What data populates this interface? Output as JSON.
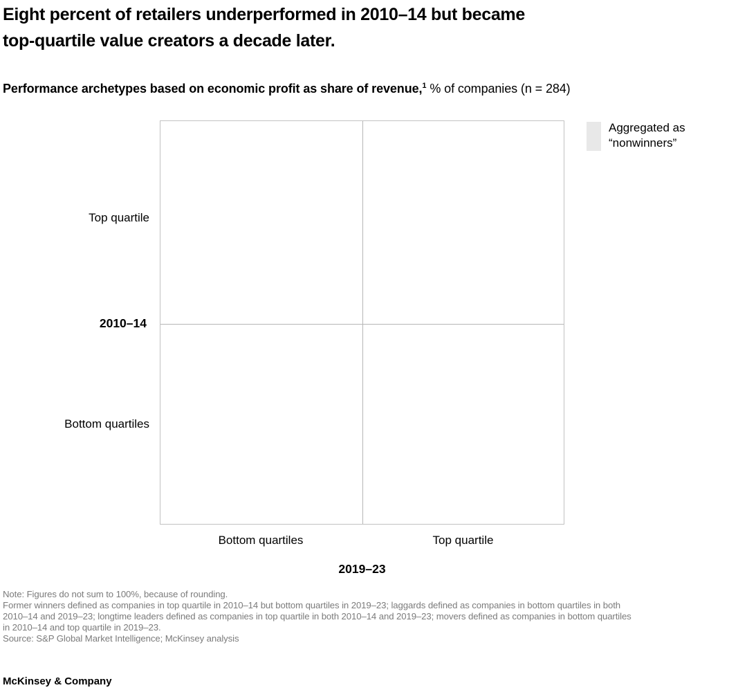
{
  "header": {
    "title_line1": "Eight percent of retailers underperformed in 2010–14 but became",
    "title_line2": "top-quartile value creators a decade later.",
    "subtitle_bold": "Performance archetypes based on economic profit as share of revenue,",
    "subtitle_sup": "1",
    "subtitle_rest": " % of companies (n = 284)"
  },
  "legend": {
    "swatch_color": "#e8e8e8",
    "line1": "Aggregated as",
    "line2": "“nonwinners”"
  },
  "matrix": {
    "border_color": "#c2c2c2",
    "y_axis": {
      "title": "2010–14",
      "top_label": "Top quartile",
      "bottom_label": "Bottom quartiles"
    },
    "x_axis": {
      "title": "2019–23",
      "left_label": "Bottom quartiles",
      "right_label": "Top quartile"
    }
  },
  "chart_data": {
    "type": "table",
    "subtype": "2x2 quadrant matrix",
    "title": "Performance archetypes based on economic profit as share of revenue, % of companies (n = 284)",
    "n": 284,
    "x_axis": {
      "title": "2019–23",
      "categories": [
        "Bottom quartiles",
        "Top quartile"
      ]
    },
    "y_axis": {
      "title": "2010–14",
      "categories": [
        "Top quartile",
        "Bottom quartiles"
      ]
    },
    "cells": [
      [
        "",
        ""
      ],
      [
        "",
        ""
      ]
    ],
    "cells_note": "all four quadrants rendered empty/white in this view",
    "grid": "outer border with center cross dividers",
    "legend": [
      {
        "label": "Aggregated as “nonwinners”",
        "color": "#e8e8e8"
      }
    ],
    "legend_position": "top-right"
  },
  "footnotes": {
    "lines": [
      "Note: Figures do not sum to 100%, because of rounding.",
      "Former winners defined as companies in top quartile in 2010–14 but bottom quartiles in 2019–23; laggards defined as companies in bottom quartiles in both",
      "2010–14 and 2019–23; longtime leaders defined as companies in top quartile in both 2010–14 and 2019–23; movers defined as companies in bottom quartiles",
      "in 2010–14 and top quartile in 2019–23.",
      "Source: S&P Global Market Intelligence; McKinsey analysis"
    ]
  },
  "footer": {
    "brand": "McKinsey & Company"
  }
}
